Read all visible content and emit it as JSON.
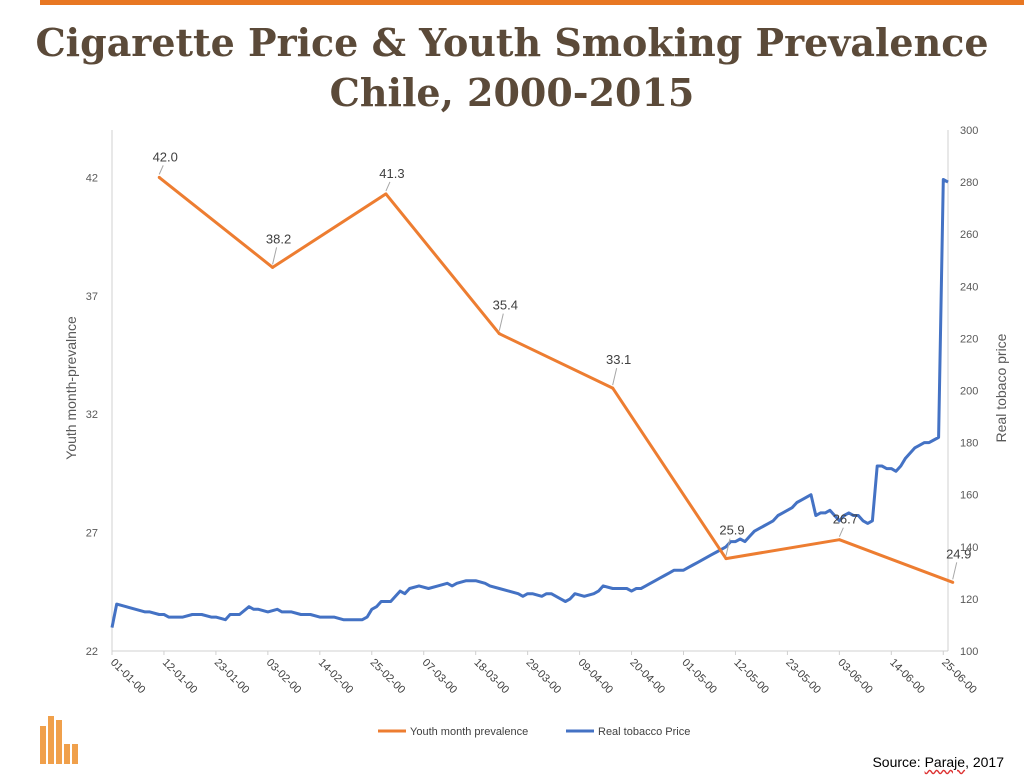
{
  "page": {
    "title_line1": "Cigarette Price & Youth Smoking Prevalence",
    "title_line2": "Chile, 2000-2015",
    "source_prefix": "Source: ",
    "source_name": "Paraje",
    "source_suffix": ", 2017",
    "accent_color": "#e87722",
    "title_color": "#5b4a39"
  },
  "chart_data": {
    "type": "line",
    "ylabel_left": "Youth month-prevalnce",
    "ylabel_right": "Real tobaco price",
    "ylim_left": [
      22,
      44
    ],
    "yticks_left": [
      22,
      27,
      32,
      37,
      42
    ],
    "ylim_right": [
      100,
      300
    ],
    "yticks_right": [
      100,
      120,
      140,
      160,
      180,
      200,
      220,
      240,
      260,
      280,
      300
    ],
    "xlim": [
      0,
      177
    ],
    "x_tick_labels": [
      "01-01-00",
      "12-01-00",
      "23-01-00",
      "03-02-00",
      "14-02-00",
      "25-02-00",
      "07-03-00",
      "18-03-00",
      "29-03-00",
      "09-04-00",
      "20-04-00",
      "01-05-00",
      "12-05-00",
      "23-05-00",
      "03-06-00",
      "14-06-00",
      "25-06-00"
    ],
    "x_tick_values": [
      0,
      11,
      22,
      33,
      44,
      55,
      66,
      77,
      88,
      99,
      110,
      121,
      132,
      143,
      154,
      165,
      176
    ],
    "legend": [
      "Youth month prevalence",
      "Real tobacco Price"
    ],
    "series": [
      {
        "name": "Youth month prevalence",
        "axis": "left",
        "color": "#ed7d31",
        "x": [
          10,
          34,
          58,
          82,
          106,
          130,
          154,
          178
        ],
        "y": [
          42.0,
          38.2,
          41.3,
          35.4,
          33.1,
          25.9,
          26.7,
          24.9
        ],
        "labels": [
          "42.0",
          "38.2",
          "41.3",
          "35.4",
          "33.1",
          "25.9",
          "26.7",
          "24.9"
        ]
      },
      {
        "name": "Real tobacco Price",
        "axis": "right",
        "color": "#4472c4",
        "x": [
          0,
          1,
          3,
          5,
          7,
          8,
          10,
          11,
          12,
          15,
          17,
          19,
          21,
          22,
          24,
          25,
          26,
          27,
          29,
          30,
          31,
          33,
          35,
          36,
          38,
          40,
          42,
          44,
          45,
          47,
          49,
          51,
          53,
          54,
          55,
          56,
          57,
          59,
          61,
          62,
          63,
          65,
          67,
          69,
          71,
          72,
          73,
          75,
          76,
          77,
          79,
          80,
          82,
          84,
          86,
          87,
          88,
          89,
          91,
          92,
          93,
          95,
          96,
          97,
          98,
          100,
          102,
          103,
          104,
          106,
          107,
          109,
          110,
          111,
          112,
          113,
          114,
          115,
          116,
          117,
          118,
          119,
          120,
          121,
          122,
          123,
          124,
          125,
          126,
          127,
          128,
          129,
          130,
          131,
          132,
          133,
          134,
          135,
          136,
          137,
          138,
          139,
          140,
          141,
          142,
          143,
          144,
          145,
          146,
          147,
          148,
          149,
          150,
          151,
          152,
          153,
          154,
          155,
          156,
          157,
          158,
          159,
          160,
          161,
          162,
          163,
          164,
          165,
          166,
          167,
          168,
          169,
          170,
          171,
          172,
          173,
          174,
          175,
          176,
          177
        ],
        "y": [
          109,
          118,
          117,
          116,
          115,
          115,
          114,
          114,
          113,
          113,
          114,
          114,
          113,
          113,
          112,
          114,
          114,
          114,
          117,
          116,
          116,
          115,
          116,
          115,
          115,
          114,
          114,
          113,
          113,
          113,
          112,
          112,
          112,
          113,
          116,
          117,
          119,
          119,
          123,
          122,
          124,
          125,
          124,
          125,
          126,
          125,
          126,
          127,
          127,
          127,
          126,
          125,
          124,
          123,
          122,
          121,
          122,
          122,
          121,
          122,
          122,
          120,
          119,
          120,
          122,
          121,
          122,
          123,
          125,
          124,
          124,
          124,
          123,
          124,
          124,
          125,
          126,
          127,
          128,
          129,
          130,
          131,
          131,
          131,
          132,
          133,
          134,
          135,
          136,
          137,
          138,
          139,
          140,
          142,
          142,
          143,
          142,
          144,
          146,
          147,
          148,
          149,
          150,
          152,
          153,
          154,
          155,
          157,
          158,
          159,
          160,
          152,
          153,
          153,
          154,
          152,
          150,
          152,
          153,
          152,
          152,
          150,
          149,
          150,
          171,
          171,
          170,
          170,
          169,
          171,
          174,
          176,
          178,
          179,
          180,
          180,
          181,
          182,
          281,
          280
        ]
      }
    ]
  }
}
